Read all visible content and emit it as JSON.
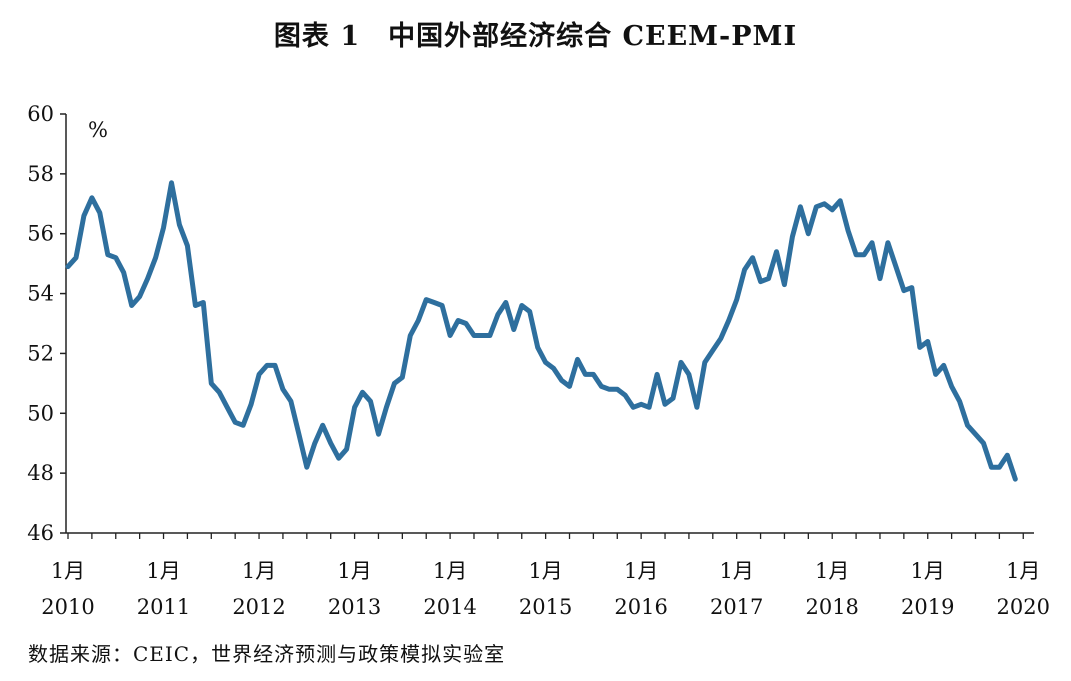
{
  "title": "图表 1　中国外部经济综合 CEEM-PMI",
  "source": "数据来源：CEIC，世界经济预测与政策模拟实验室",
  "chart_data": {
    "type": "line",
    "title": "图表 1　中国外部经济综合 CEEM-PMI",
    "ylabel": "%",
    "ylim": [
      46,
      60
    ],
    "yticks": [
      "60",
      "58",
      "56",
      "54",
      "52",
      "50",
      "48",
      "46"
    ],
    "xticks": [
      {
        "month": "1月",
        "year": "2010"
      },
      {
        "month": "1月",
        "year": "2011"
      },
      {
        "month": "1月",
        "year": "2012"
      },
      {
        "month": "1月",
        "year": "2013"
      },
      {
        "month": "1月",
        "year": "2014"
      },
      {
        "month": "1月",
        "year": "2015"
      },
      {
        "month": "1月",
        "year": "2016"
      },
      {
        "month": "1月",
        "year": "2017"
      },
      {
        "month": "1月",
        "year": "2018"
      },
      {
        "month": "1月",
        "year": "2019"
      },
      {
        "month": "1月",
        "year": "2020"
      }
    ],
    "series_color": "#2e6f9e",
    "grid": false,
    "x_start": "2010-01",
    "series": [
      {
        "values": [
          54.9,
          55.2,
          56.6,
          57.2,
          56.7,
          55.3,
          55.2,
          54.7,
          53.6,
          53.9,
          54.5,
          55.2,
          56.2,
          57.7,
          56.3,
          55.6,
          53.6,
          53.7,
          51.0,
          50.7,
          50.2,
          49.7,
          49.6,
          50.3,
          51.3,
          51.6,
          51.6,
          50.8,
          50.4,
          49.3,
          48.2,
          49.0,
          49.6,
          49.0,
          48.5,
          48.8,
          50.2,
          50.7,
          50.4,
          49.3,
          50.2,
          51.0,
          51.2,
          52.6,
          53.1,
          53.8,
          53.7,
          53.6,
          52.6,
          53.1,
          53.0,
          52.6,
          52.6,
          52.6,
          53.3,
          53.7,
          52.8,
          53.6,
          53.4,
          52.2,
          51.7,
          51.5,
          51.1,
          50.9,
          51.8,
          51.3,
          51.3,
          50.9,
          50.8,
          50.8,
          50.6,
          50.2,
          50.3,
          50.2,
          51.3,
          50.3,
          50.5,
          51.7,
          51.3,
          50.2,
          51.7,
          52.1,
          52.5,
          53.1,
          53.8,
          54.8,
          55.2,
          54.4,
          54.5,
          55.4,
          54.3,
          55.9,
          56.9,
          56.0,
          56.9,
          57.0,
          56.8,
          57.1,
          56.1,
          55.3,
          55.3,
          55.7,
          54.5,
          55.7,
          54.9,
          54.1,
          54.2,
          52.2,
          52.4,
          51.3,
          51.6,
          50.9,
          50.4,
          49.6,
          49.3,
          49.0,
          48.2,
          48.2,
          48.6,
          47.8
        ]
      }
    ]
  }
}
